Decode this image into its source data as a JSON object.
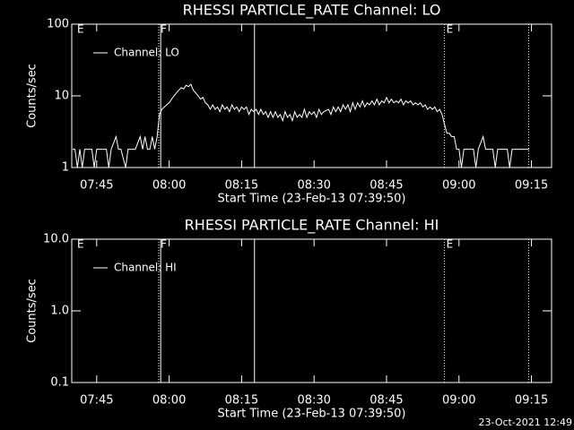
{
  "chart_data": [
    {
      "type": "line",
      "title": "RHESSI PARTICLE_RATE Channel: LO",
      "xlabel": "Start Time (23-Feb-13 07:39:50)",
      "ylabel": "Counts/sec",
      "xlim": [
        "07:39:50",
        "09:19:10"
      ],
      "xticks": [
        "07:45",
        "08:00",
        "08:15",
        "08:30",
        "08:45",
        "09:00",
        "09:15"
      ],
      "ylim": [
        1,
        100
      ],
      "yticks": [
        1,
        10,
        100
      ],
      "log_y": true,
      "flags": [
        {
          "x": "07:40:35",
          "label": "E"
        },
        {
          "x": "07:57:50",
          "label": "F"
        },
        {
          "x": "08:57:00",
          "label": "E"
        }
      ],
      "vlines": [
        {
          "x": "07:57:50",
          "style": "dotted"
        },
        {
          "x": "07:58:15",
          "style": "solid"
        },
        {
          "x": "08:17:40",
          "style": "solid"
        },
        {
          "x": "08:57:00",
          "style": "dotted"
        },
        {
          "x": "09:14:25",
          "style": "dotted"
        }
      ],
      "series": [
        {
          "name": "Channel: LO",
          "color": "#ffffff",
          "x": [
            "07:40:00",
            "07:40:30",
            "07:41:00",
            "07:41:30",
            "07:42:00",
            "07:42:30",
            "07:43:00",
            "07:43:30",
            "07:44:00",
            "07:44:30",
            "07:45:00",
            "07:46:00",
            "07:47:00",
            "07:47:30",
            "07:48:00",
            "07:49:00",
            "07:49:30",
            "07:50:00",
            "07:51:00",
            "07:51:30",
            "07:52:00",
            "07:53:00",
            "07:54:00",
            "07:54:30",
            "07:55:00",
            "07:55:30",
            "07:56:00",
            "07:56:30",
            "07:57:00",
            "07:57:30",
            "07:58:00",
            "07:58:30",
            "07:59:00",
            "07:59:30",
            "08:00:00",
            "08:00:30",
            "08:01:00",
            "08:01:30",
            "08:02:00",
            "08:02:30",
            "08:03:00",
            "08:03:30",
            "08:04:00",
            "08:04:30",
            "08:05:00",
            "08:05:30",
            "08:06:00",
            "08:06:30",
            "08:07:00",
            "08:07:30",
            "08:08:00",
            "08:08:30",
            "08:09:00",
            "08:09:30",
            "08:10:00",
            "08:10:30",
            "08:11:00",
            "08:11:30",
            "08:12:00",
            "08:12:30",
            "08:13:00",
            "08:13:30",
            "08:14:00",
            "08:14:30",
            "08:15:00",
            "08:15:30",
            "08:16:00",
            "08:16:30",
            "08:17:00",
            "08:17:30",
            "08:18:00",
            "08:18:30",
            "08:19:00",
            "08:19:30",
            "08:20:00",
            "08:20:30",
            "08:21:00",
            "08:21:30",
            "08:22:00",
            "08:22:30",
            "08:23:00",
            "08:23:30",
            "08:24:00",
            "08:24:30",
            "08:25:00",
            "08:25:30",
            "08:26:00",
            "08:26:30",
            "08:27:00",
            "08:27:30",
            "08:28:00",
            "08:28:30",
            "08:29:00",
            "08:29:30",
            "08:30:00",
            "08:30:30",
            "08:31:00",
            "08:31:30",
            "08:32:00",
            "08:33:00",
            "08:33:30",
            "08:34:00",
            "08:34:30",
            "08:35:00",
            "08:35:30",
            "08:36:00",
            "08:36:30",
            "08:37:00",
            "08:37:30",
            "08:38:00",
            "08:38:30",
            "08:39:00",
            "08:39:30",
            "08:40:00",
            "08:40:30",
            "08:41:00",
            "08:41:30",
            "08:42:00",
            "08:42:30",
            "08:43:00",
            "08:43:30",
            "08:44:00",
            "08:44:30",
            "08:45:00",
            "08:45:30",
            "08:46:00",
            "08:46:30",
            "08:47:00",
            "08:47:30",
            "08:48:00",
            "08:48:30",
            "08:49:00",
            "08:49:30",
            "08:50:00",
            "08:50:30",
            "08:51:00",
            "08:51:30",
            "08:52:00",
            "08:52:30",
            "08:53:00",
            "08:53:30",
            "08:54:00",
            "08:54:30",
            "08:55:00",
            "08:55:30",
            "08:56:00",
            "08:56:30",
            "08:57:00",
            "08:57:30",
            "08:58:00",
            "08:58:30",
            "08:59:00",
            "08:59:30",
            "09:00:00",
            "09:00:30",
            "09:01:00",
            "09:02:00",
            "09:03:00",
            "09:03:30",
            "09:04:00",
            "09:05:00",
            "09:05:30",
            "09:06:00",
            "09:07:00",
            "09:07:30",
            "09:08:00",
            "09:09:00",
            "09:10:00",
            "09:10:30",
            "09:11:00",
            "09:12:00",
            "09:13:00",
            "09:14:00",
            "09:14:30"
          ],
          "values": [
            1.8,
            1.8,
            1,
            1.8,
            1,
            1.8,
            1.8,
            1.8,
            1.8,
            1,
            1.8,
            1.8,
            1.8,
            1,
            1.8,
            2.7,
            1.8,
            1.8,
            1,
            1.8,
            1.8,
            1.8,
            2.7,
            1.8,
            2.7,
            1.8,
            1.8,
            2.7,
            1.8,
            2.7,
            5.5,
            6.5,
            7,
            7.5,
            8,
            9,
            10,
            11,
            12,
            13,
            12.5,
            14,
            13.5,
            14.5,
            12,
            11,
            10,
            9,
            9.5,
            8,
            7.5,
            6.5,
            7.5,
            6.5,
            7,
            6,
            7.5,
            6.5,
            7,
            6,
            7.5,
            6.5,
            7,
            6,
            7,
            6.5,
            7,
            5.5,
            6.5,
            6,
            6.5,
            5.5,
            6.5,
            5.5,
            6,
            5,
            6,
            5,
            6,
            5,
            5.5,
            4.5,
            6,
            5,
            5.5,
            4.5,
            6,
            5,
            5.5,
            5,
            6.5,
            5,
            6,
            5.5,
            6,
            5,
            6.5,
            5.5,
            6,
            6.5,
            5.5,
            7,
            6,
            7,
            6,
            7.5,
            6.5,
            7.5,
            6,
            8,
            6.5,
            8,
            7,
            8.5,
            7,
            8,
            7.5,
            8.5,
            7.5,
            9,
            7.5,
            8.5,
            8,
            9.5,
            8,
            9,
            8,
            8.5,
            8,
            9,
            7.5,
            8.5,
            8,
            8.5,
            7.5,
            8,
            7.5,
            8,
            7,
            7.5,
            6.5,
            7,
            6.5,
            7,
            6,
            6.5,
            5.5,
            4,
            3,
            3,
            2.7,
            2.7,
            1.8,
            1.8,
            1,
            1.8,
            1.8,
            1.8,
            1,
            1.8,
            2.7,
            1.8,
            1.8,
            1.8,
            1,
            1.8,
            1.8,
            1.8,
            1,
            1.8,
            1.8,
            1.8,
            1.8,
            1.8
          ]
        }
      ]
    },
    {
      "type": "line",
      "title": "RHESSI PARTICLE_RATE Channel: HI",
      "xlabel": "Start Time (23-Feb-13 07:39:50)",
      "ylabel": "Counts/sec",
      "xlim": [
        "07:39:50",
        "09:19:10"
      ],
      "xticks": [
        "07:45",
        "08:00",
        "08:15",
        "08:30",
        "08:45",
        "09:00",
        "09:15"
      ],
      "ylim": [
        0.1,
        10
      ],
      "yticks": [
        0.1,
        {
          "value": 1,
          "label": "1.0"
        },
        {
          "value": 10,
          "label": "10.0"
        }
      ],
      "log_y": true,
      "flags": [
        {
          "x": "07:40:35",
          "label": "E"
        },
        {
          "x": "07:57:50",
          "label": "F"
        },
        {
          "x": "08:57:00",
          "label": "E"
        }
      ],
      "vlines": [
        {
          "x": "07:57:50",
          "style": "dotted"
        },
        {
          "x": "07:58:15",
          "style": "solid"
        },
        {
          "x": "08:17:40",
          "style": "solid"
        },
        {
          "x": "08:57:00",
          "style": "dotted"
        },
        {
          "x": "09:14:25",
          "style": "dotted"
        }
      ],
      "series": [
        {
          "name": "Channel: HI",
          "color": "#ffffff",
          "x": [],
          "values": []
        }
      ]
    }
  ],
  "timestamp": "23-Oct-2021 12:49"
}
